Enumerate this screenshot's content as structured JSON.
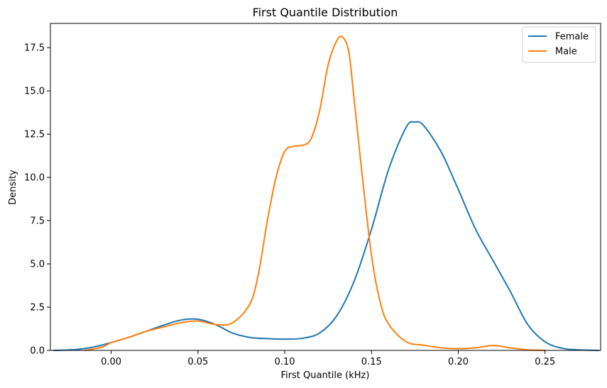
{
  "chart_data": {
    "type": "line",
    "title": "First Quantile Distribution",
    "xlabel": "First Quantile (kHz)",
    "ylabel": "Density",
    "xlim": [
      -0.035,
      0.282
    ],
    "ylim": [
      0,
      18.9
    ],
    "xticks": [
      0.0,
      0.05,
      0.1,
      0.15,
      0.2,
      0.25
    ],
    "xtick_labels": [
      "0.00",
      "0.05",
      "0.10",
      "0.15",
      "0.20",
      "0.25"
    ],
    "yticks": [
      0.0,
      2.5,
      5.0,
      7.5,
      10.0,
      12.5,
      15.0,
      17.5
    ],
    "ytick_labels": [
      "0.0",
      "2.5",
      "5.0",
      "7.5",
      "10.0",
      "12.5",
      "15.0",
      "17.5"
    ],
    "grid": false,
    "legend_position": "top-right",
    "series": [
      {
        "name": "Female",
        "color": "#1f77b4",
        "x": [
          -0.033,
          -0.02,
          -0.01,
          0.0,
          0.01,
          0.02,
          0.03,
          0.04,
          0.05,
          0.06,
          0.07,
          0.08,
          0.09,
          0.1,
          0.11,
          0.12,
          0.13,
          0.14,
          0.15,
          0.16,
          0.17,
          0.175,
          0.18,
          0.19,
          0.2,
          0.21,
          0.22,
          0.23,
          0.24,
          0.25,
          0.26,
          0.27,
          0.281
        ],
        "y": [
          0.0,
          0.05,
          0.2,
          0.45,
          0.75,
          1.1,
          1.45,
          1.75,
          1.8,
          1.5,
          1.0,
          0.75,
          0.68,
          0.65,
          0.7,
          1.0,
          2.0,
          4.0,
          7.0,
          10.5,
          12.9,
          13.2,
          13.0,
          11.5,
          9.3,
          7.0,
          5.2,
          3.4,
          1.5,
          0.5,
          0.12,
          0.03,
          0.0
        ]
      },
      {
        "name": "Male",
        "color": "#ff7f0e",
        "x": [
          -0.015,
          -0.005,
          0.0,
          0.01,
          0.02,
          0.03,
          0.04,
          0.05,
          0.06,
          0.07,
          0.08,
          0.085,
          0.09,
          0.095,
          0.1,
          0.105,
          0.11,
          0.115,
          0.12,
          0.125,
          0.13,
          0.1335,
          0.137,
          0.14,
          0.145,
          0.15,
          0.155,
          0.16,
          0.17,
          0.18,
          0.19,
          0.2,
          0.21,
          0.22,
          0.23,
          0.24,
          0.25
        ],
        "y": [
          0.0,
          0.2,
          0.45,
          0.75,
          1.1,
          1.35,
          1.6,
          1.7,
          1.5,
          1.6,
          2.7,
          4.5,
          7.5,
          10.0,
          11.5,
          11.8,
          11.85,
          12.2,
          13.8,
          16.5,
          17.9,
          18.1,
          17.2,
          14.5,
          9.8,
          5.5,
          2.8,
          1.5,
          0.5,
          0.3,
          0.15,
          0.1,
          0.15,
          0.28,
          0.15,
          0.03,
          0.0
        ]
      }
    ]
  }
}
